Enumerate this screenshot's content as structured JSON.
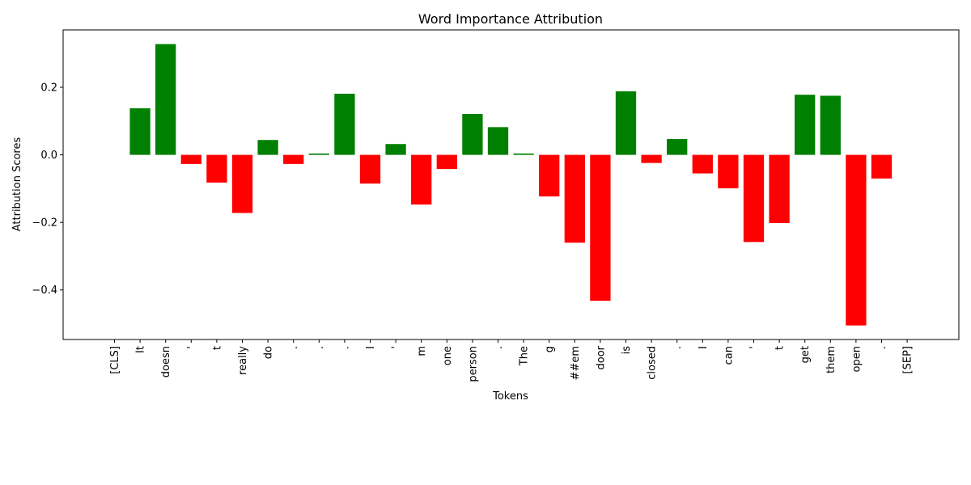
{
  "chart_data": {
    "type": "bar",
    "title": "Word Importance Attribution",
    "xlabel": "Tokens",
    "ylabel": "Attribution Scores",
    "categories": [
      "[CLS]",
      "It",
      "doesn",
      "'",
      "t",
      "really",
      "do",
      ".",
      ".",
      ".",
      "I",
      "'",
      "m",
      "one",
      "person",
      ".",
      "The",
      "g",
      "##em",
      "door",
      "is",
      "closed",
      ".",
      "I",
      "can",
      "'",
      "t",
      "get",
      "them",
      "open",
      ".",
      "[SEP]"
    ],
    "values": [
      0.0,
      0.138,
      0.328,
      -0.027,
      -0.082,
      -0.172,
      0.044,
      -0.027,
      0.004,
      0.181,
      -0.085,
      0.032,
      -0.147,
      -0.042,
      0.121,
      0.082,
      0.004,
      -0.123,
      -0.26,
      -0.432,
      0.188,
      -0.024,
      0.047,
      -0.055,
      -0.099,
      -0.258,
      -0.202,
      0.178,
      0.175,
      -0.505,
      -0.07,
      0.0
    ],
    "yticks": [
      -0.4,
      -0.2,
      0.0,
      0.2
    ],
    "ytick_labels": [
      "−0.4",
      "−0.2",
      "0.0",
      "0.2"
    ],
    "ylim": [
      -0.5466,
      0.3699
    ],
    "positive_color": "#008000",
    "negative_color": "#ff0000",
    "grid": false,
    "legend": "none"
  }
}
